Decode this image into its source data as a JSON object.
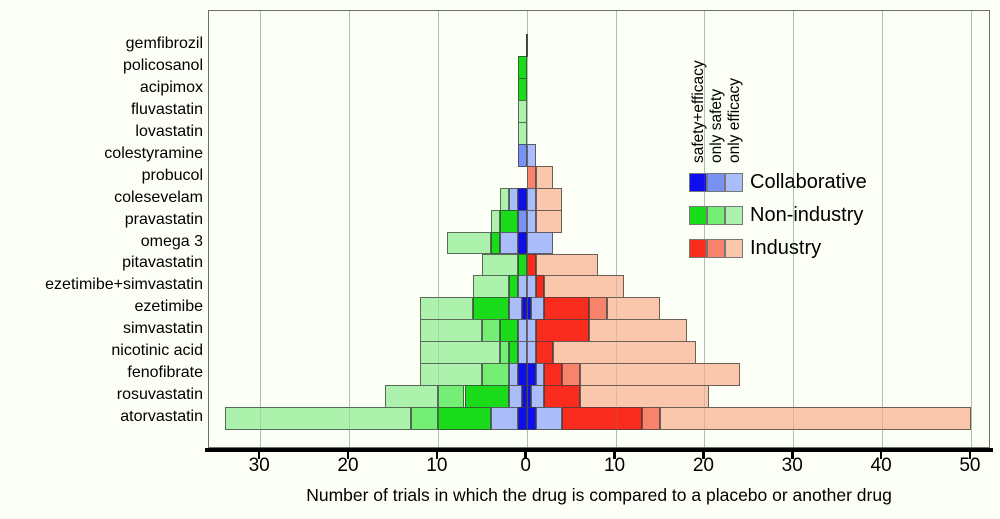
{
  "chart_data": {
    "type": "bar",
    "variant": "diverging_stacked_horizontal",
    "title": "",
    "xlabel": "Number of trials in which the drug is compared to a placebo or another drug",
    "x_ticks": [
      {
        "value": -30,
        "label": "30"
      },
      {
        "value": -20,
        "label": "20"
      },
      {
        "value": -10,
        "label": "10"
      },
      {
        "value": 0,
        "label": "0"
      },
      {
        "value": 10,
        "label": "10"
      },
      {
        "value": 20,
        "label": "20"
      },
      {
        "value": 30,
        "label": "30"
      },
      {
        "value": 40,
        "label": "40"
      },
      {
        "value": 50,
        "label": "50"
      }
    ],
    "xlim": [
      -35.7,
      52.3
    ],
    "grid": "vertical",
    "colors": {
      "C": {
        "se": "#0D0DEE",
        "s": "#7792F2",
        "e": "#ABBDF8"
      },
      "N": {
        "se": "#1ADC1A",
        "s": "#74EE74",
        "e": "#ACF2AC"
      },
      "I": {
        "se": "#F92B1D",
        "s": "#F8836B",
        "e": "#FAC6AC"
      }
    },
    "legend": {
      "categories": [
        "safety+efficacy",
        "only safety",
        "only efficacy"
      ],
      "funders": [
        {
          "key": "C",
          "label": "Collaborative"
        },
        {
          "key": "N",
          "label": "Non-industry"
        },
        {
          "key": "I",
          "label": "Industry"
        }
      ]
    },
    "drugs": [
      {
        "name": "gemfibrozil",
        "zero_marker": true,
        "left": [],
        "right": []
      },
      {
        "name": "policosanol",
        "left": [
          {
            "f": "N",
            "c": "se",
            "v": 1
          }
        ],
        "right": []
      },
      {
        "name": "acipimox",
        "left": [
          {
            "f": "N",
            "c": "se",
            "v": 1
          }
        ],
        "right": []
      },
      {
        "name": "fluvastatin",
        "left": [
          {
            "f": "N",
            "c": "e",
            "v": 1
          }
        ],
        "right": []
      },
      {
        "name": "lovastatin",
        "left": [
          {
            "f": "N",
            "c": "e",
            "v": 1
          }
        ],
        "right": []
      },
      {
        "name": "colestyramine",
        "left": [
          {
            "f": "C",
            "c": "s",
            "v": 1
          }
        ],
        "right": [
          {
            "f": "C",
            "c": "e",
            "v": 1
          }
        ]
      },
      {
        "name": "probucol",
        "left": [],
        "right": [
          {
            "f": "I",
            "c": "s",
            "v": 1
          },
          {
            "f": "I",
            "c": "e",
            "v": 2
          }
        ]
      },
      {
        "name": "colesevelam",
        "left": [
          {
            "f": "C",
            "c": "se",
            "v": 1
          },
          {
            "f": "C",
            "c": "e",
            "v": 1
          },
          {
            "f": "N",
            "c": "e",
            "v": 1
          }
        ],
        "right": [
          {
            "f": "C",
            "c": "e",
            "v": 1
          },
          {
            "f": "I",
            "c": "e",
            "v": 3
          }
        ]
      },
      {
        "name": "pravastatin",
        "left": [
          {
            "f": "C",
            "c": "s",
            "v": 1
          },
          {
            "f": "N",
            "c": "se",
            "v": 2
          },
          {
            "f": "N",
            "c": "e",
            "v": 1
          }
        ],
        "right": [
          {
            "f": "C",
            "c": "e",
            "v": 1
          },
          {
            "f": "I",
            "c": "e",
            "v": 3
          }
        ]
      },
      {
        "name": "omega 3",
        "left": [
          {
            "f": "C",
            "c": "se",
            "v": 1
          },
          {
            "f": "C",
            "c": "e",
            "v": 2
          },
          {
            "f": "N",
            "c": "se",
            "v": 1
          },
          {
            "f": "N",
            "c": "e",
            "v": 5
          }
        ],
        "right": [
          {
            "f": "C",
            "c": "e",
            "v": 3
          }
        ]
      },
      {
        "name": "pitavastatin",
        "left": [
          {
            "f": "N",
            "c": "se",
            "v": 1
          },
          {
            "f": "N",
            "c": "e",
            "v": 4
          }
        ],
        "right": [
          {
            "f": "I",
            "c": "se",
            "v": 1
          },
          {
            "f": "I",
            "c": "e",
            "v": 7
          }
        ]
      },
      {
        "name": "ezetimibe+simvastatin",
        "left": [
          {
            "f": "C",
            "c": "e",
            "v": 1
          },
          {
            "f": "N",
            "c": "se",
            "v": 1
          },
          {
            "f": "N",
            "c": "e",
            "v": 4
          }
        ],
        "right": [
          {
            "f": "C",
            "c": "e",
            "v": 1
          },
          {
            "f": "I",
            "c": "se",
            "v": 1
          },
          {
            "f": "I",
            "c": "e",
            "v": 9
          }
        ]
      },
      {
        "name": "ezetimibe",
        "left": [
          {
            "f": "C",
            "c": "se",
            "v": 0.5
          },
          {
            "f": "C",
            "c": "e",
            "v": 1.5
          },
          {
            "f": "N",
            "c": "se",
            "v": 4
          },
          {
            "f": "N",
            "c": "e",
            "v": 6
          }
        ],
        "right": [
          {
            "f": "C",
            "c": "se",
            "v": 0.5
          },
          {
            "f": "C",
            "c": "e",
            "v": 1.5
          },
          {
            "f": "I",
            "c": "se",
            "v": 5
          },
          {
            "f": "I",
            "c": "s",
            "v": 2
          },
          {
            "f": "I",
            "c": "e",
            "v": 6
          }
        ]
      },
      {
        "name": "simvastatin",
        "left": [
          {
            "f": "C",
            "c": "e",
            "v": 1
          },
          {
            "f": "N",
            "c": "se",
            "v": 2
          },
          {
            "f": "N",
            "c": "s",
            "v": 2
          },
          {
            "f": "N",
            "c": "e",
            "v": 7
          }
        ],
        "right": [
          {
            "f": "C",
            "c": "e",
            "v": 1
          },
          {
            "f": "I",
            "c": "se",
            "v": 6
          },
          {
            "f": "I",
            "c": "e",
            "v": 11
          }
        ]
      },
      {
        "name": "nicotinic acid",
        "left": [
          {
            "f": "C",
            "c": "e",
            "v": 1
          },
          {
            "f": "N",
            "c": "se",
            "v": 1
          },
          {
            "f": "N",
            "c": "s",
            "v": 1
          },
          {
            "f": "N",
            "c": "e",
            "v": 9
          }
        ],
        "right": [
          {
            "f": "C",
            "c": "e",
            "v": 1
          },
          {
            "f": "I",
            "c": "se",
            "v": 2
          },
          {
            "f": "I",
            "c": "e",
            "v": 16
          }
        ]
      },
      {
        "name": "fenofibrate",
        "left": [
          {
            "f": "C",
            "c": "se",
            "v": 1
          },
          {
            "f": "C",
            "c": "e",
            "v": 1
          },
          {
            "f": "N",
            "c": "s",
            "v": 3
          },
          {
            "f": "N",
            "c": "e",
            "v": 7
          }
        ],
        "right": [
          {
            "f": "C",
            "c": "se",
            "v": 1
          },
          {
            "f": "C",
            "c": "e",
            "v": 1
          },
          {
            "f": "I",
            "c": "se",
            "v": 2
          },
          {
            "f": "I",
            "c": "s",
            "v": 2
          },
          {
            "f": "I",
            "c": "e",
            "v": 18
          }
        ]
      },
      {
        "name": "rosuvastatin",
        "left": [
          {
            "f": "C",
            "c": "se",
            "v": 0.5
          },
          {
            "f": "C",
            "c": "e",
            "v": 1.5
          },
          {
            "f": "N",
            "c": "se",
            "v": 5
          },
          {
            "f": "N",
            "c": "s",
            "v": 3
          },
          {
            "f": "N",
            "c": "e",
            "v": 6
          }
        ],
        "right": [
          {
            "f": "C",
            "c": "se",
            "v": 0.5
          },
          {
            "f": "C",
            "c": "e",
            "v": 1.5
          },
          {
            "f": "I",
            "c": "se",
            "v": 4
          },
          {
            "f": "I",
            "c": "e",
            "v": 14.5
          }
        ]
      },
      {
        "name": "atorvastatin",
        "left": [
          {
            "f": "C",
            "c": "se",
            "v": 1
          },
          {
            "f": "C",
            "c": "e",
            "v": 3
          },
          {
            "f": "N",
            "c": "se",
            "v": 6
          },
          {
            "f": "N",
            "c": "s",
            "v": 3
          },
          {
            "f": "N",
            "c": "e",
            "v": 21
          }
        ],
        "right": [
          {
            "f": "C",
            "c": "se",
            "v": 1
          },
          {
            "f": "C",
            "c": "e",
            "v": 3
          },
          {
            "f": "I",
            "c": "se",
            "v": 9
          },
          {
            "f": "I",
            "c": "s",
            "v": 2
          },
          {
            "f": "I",
            "c": "e",
            "v": 35
          }
        ]
      }
    ]
  }
}
